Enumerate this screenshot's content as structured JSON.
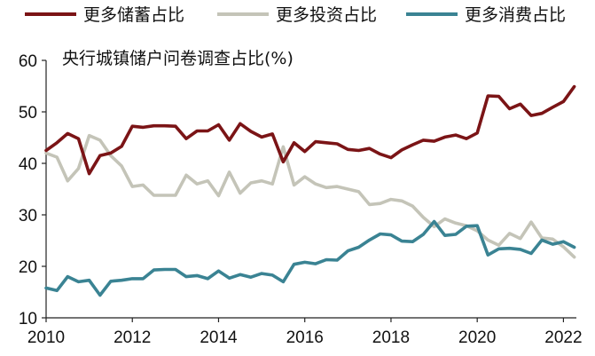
{
  "chart_data": {
    "type": "line",
    "title": "央行城镇储户问卷调查占比(%)",
    "xlabel": "",
    "ylabel": "",
    "xlim": [
      2010,
      2022.3
    ],
    "ylim": [
      10,
      60
    ],
    "xticks": [
      2010,
      2012,
      2014,
      2016,
      2018,
      2020,
      2022
    ],
    "yticks": [
      10,
      20,
      30,
      40,
      50,
      60
    ],
    "legend_position": "top",
    "grid": false,
    "series": [
      {
        "name": "更多储蓄占比",
        "color": "#7b1416",
        "x": [
          2010.0,
          2010.25,
          2010.5,
          2010.75,
          2011.0,
          2011.25,
          2011.5,
          2011.75,
          2012.0,
          2012.25,
          2012.5,
          2012.75,
          2013.0,
          2013.25,
          2013.5,
          2013.75,
          2014.0,
          2014.25,
          2014.5,
          2014.75,
          2015.0,
          2015.25,
          2015.5,
          2015.75,
          2016.0,
          2016.25,
          2016.5,
          2016.75,
          2017.0,
          2017.25,
          2017.5,
          2017.75,
          2018.0,
          2018.25,
          2018.5,
          2018.75,
          2019.0,
          2019.25,
          2019.5,
          2019.75,
          2020.0,
          2020.25,
          2020.5,
          2020.75,
          2021.0,
          2021.25,
          2021.5,
          2021.75,
          2022.0,
          2022.25
        ],
        "values": [
          42.5,
          44.0,
          45.8,
          44.8,
          38.0,
          41.5,
          42.0,
          43.3,
          47.2,
          47.0,
          47.3,
          47.3,
          47.2,
          44.8,
          46.3,
          46.3,
          47.5,
          44.5,
          47.7,
          46.2,
          45.1,
          45.7,
          40.3,
          44.0,
          42.3,
          44.2,
          44.0,
          43.8,
          42.7,
          42.5,
          42.9,
          41.8,
          41.1,
          42.6,
          43.6,
          44.5,
          44.3,
          45.1,
          45.5,
          44.8,
          45.9,
          53.1,
          53.0,
          50.6,
          51.5,
          49.3,
          49.7,
          50.9,
          52.0,
          54.9
        ]
      },
      {
        "name": "更多投资占比",
        "color": "#c4c4b8",
        "x": [
          2010.0,
          2010.25,
          2010.5,
          2010.75,
          2011.0,
          2011.25,
          2011.5,
          2011.75,
          2012.0,
          2012.25,
          2012.5,
          2012.75,
          2013.0,
          2013.25,
          2013.5,
          2013.75,
          2014.0,
          2014.25,
          2014.5,
          2014.75,
          2015.0,
          2015.25,
          2015.5,
          2015.75,
          2016.0,
          2016.25,
          2016.5,
          2016.75,
          2017.0,
          2017.25,
          2017.5,
          2017.75,
          2018.0,
          2018.25,
          2018.5,
          2018.75,
          2019.0,
          2019.25,
          2019.5,
          2019.75,
          2020.0,
          2020.25,
          2020.5,
          2020.75,
          2021.0,
          2021.25,
          2021.5,
          2021.75,
          2022.0,
          2022.25
        ],
        "values": [
          42.0,
          41.2,
          36.6,
          39.0,
          45.4,
          44.5,
          41.5,
          39.5,
          35.5,
          35.8,
          33.8,
          33.8,
          33.8,
          37.7,
          36.0,
          36.6,
          33.7,
          38.3,
          34.2,
          36.2,
          36.6,
          36.0,
          43.2,
          35.8,
          37.4,
          36.0,
          35.3,
          35.5,
          35.0,
          34.5,
          32.0,
          32.2,
          33.0,
          32.7,
          31.7,
          29.5,
          27.7,
          29.2,
          28.4,
          27.9,
          26.9,
          25.1,
          24.1,
          26.4,
          25.4,
          28.6,
          25.5,
          25.3,
          23.8,
          21.8
        ]
      },
      {
        "name": "更多消费占比",
        "color": "#3a8393",
        "x": [
          2010.0,
          2010.25,
          2010.5,
          2010.75,
          2011.0,
          2011.25,
          2011.5,
          2011.75,
          2012.0,
          2012.25,
          2012.5,
          2012.75,
          2013.0,
          2013.25,
          2013.5,
          2013.75,
          2014.0,
          2014.25,
          2014.5,
          2014.75,
          2015.0,
          2015.25,
          2015.5,
          2015.75,
          2016.0,
          2016.25,
          2016.5,
          2016.75,
          2017.0,
          2017.25,
          2017.5,
          2017.75,
          2018.0,
          2018.25,
          2018.5,
          2018.75,
          2019.0,
          2019.25,
          2019.5,
          2019.75,
          2020.0,
          2020.25,
          2020.5,
          2020.75,
          2021.0,
          2021.25,
          2021.5,
          2021.75,
          2022.0,
          2022.25
        ],
        "values": [
          15.8,
          15.3,
          18.0,
          17.0,
          17.3,
          14.4,
          17.1,
          17.3,
          17.6,
          17.6,
          19.3,
          19.4,
          19.4,
          18.0,
          18.2,
          17.6,
          19.1,
          17.7,
          18.4,
          17.9,
          18.6,
          18.3,
          17.0,
          20.4,
          20.8,
          20.5,
          21.3,
          21.2,
          23.0,
          23.7,
          25.1,
          26.3,
          26.1,
          24.9,
          24.8,
          26.2,
          28.7,
          26.0,
          26.2,
          27.8,
          27.9,
          22.2,
          23.4,
          23.5,
          23.3,
          22.5,
          25.1,
          24.3,
          24.8,
          23.7
        ]
      }
    ]
  }
}
